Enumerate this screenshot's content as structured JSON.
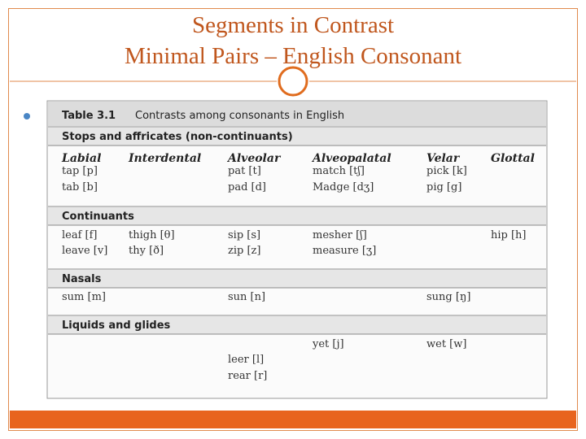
{
  "slide": {
    "title_line1": "Segments in Contrast",
    "title_line2": "Minimal Pairs – English Consonant"
  },
  "table": {
    "label": "Table 3.1",
    "caption": "Contrasts among consonants in English",
    "columns": [
      "Labial",
      "Interdental",
      "Alveolar",
      "Alveopalatal",
      "Velar",
      "Glottal"
    ],
    "sections": [
      {
        "title": "Stops and affricates (non-continuants)",
        "rows": [
          {
            "Labial": "tap [p]",
            "Alveolar": "pat [t]",
            "Alveopalatal": "match [tʃ]",
            "Velar": "pick [k]"
          },
          {
            "Labial": "tab [b]",
            "Alveolar": "pad [d]",
            "Alveopalatal": "Madge [dʒ]",
            "Velar": "pig [g]"
          }
        ]
      },
      {
        "title": "Continuants",
        "rows": [
          {
            "Labial": "leaf [f]",
            "Interdental": "thigh [θ]",
            "Alveolar": "sip [s]",
            "Alveopalatal": "mesher [ʃ]",
            "Glottal": "hip [h]"
          },
          {
            "Labial": "leave [v]",
            "Interdental": "thy [ð]",
            "Alveolar": "zip [z]",
            "Alveopalatal": "measure [ʒ]"
          }
        ]
      },
      {
        "title": "Nasals",
        "rows": [
          {
            "Labial": "sum [m]",
            "Alveolar": "sun [n]",
            "Velar": "sung [ŋ]"
          }
        ]
      },
      {
        "title": "Liquids and glides",
        "rows": [
          {
            "Alveopalatal": "yet [j]",
            "Velar": "wet [w]"
          },
          {
            "Alveolar": "leer [l]"
          },
          {
            "Alveolar": "rear [r]"
          }
        ]
      }
    ]
  }
}
